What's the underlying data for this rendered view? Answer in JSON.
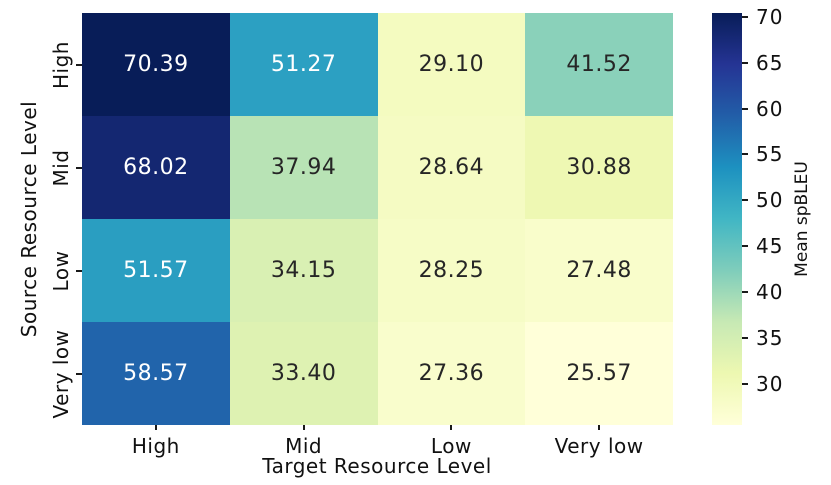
{
  "chart_data": {
    "type": "heatmap",
    "title": "",
    "xlabel": "Target Resource Level",
    "ylabel": "Source Resource Level",
    "x_categories": [
      "High",
      "Mid",
      "Low",
      "Very low"
    ],
    "y_categories": [
      "High",
      "Mid",
      "Low",
      "Very low"
    ],
    "values": [
      [
        70.39,
        51.27,
        29.1,
        41.52
      ],
      [
        68.02,
        37.94,
        28.64,
        30.88
      ],
      [
        51.57,
        34.15,
        28.25,
        27.48
      ],
      [
        58.57,
        33.4,
        27.36,
        25.57
      ]
    ],
    "colorbar": {
      "label": "Mean spBLEU",
      "ticks": [
        70,
        65,
        60,
        55,
        50,
        45,
        40,
        35,
        30
      ],
      "vmin": 25.57,
      "vmax": 70.39
    },
    "colormap": {
      "name": "YlGnBu",
      "stops": [
        "#ffffd9",
        "#edf8b1",
        "#c7e9b4",
        "#7fcdbb",
        "#41b6c4",
        "#1d91c0",
        "#225ea8",
        "#253494",
        "#081d58"
      ]
    },
    "annotation_colors": {
      "light_text": "#ffffff",
      "dark_text": "#262626"
    },
    "legend_position": "right",
    "grid": false
  }
}
